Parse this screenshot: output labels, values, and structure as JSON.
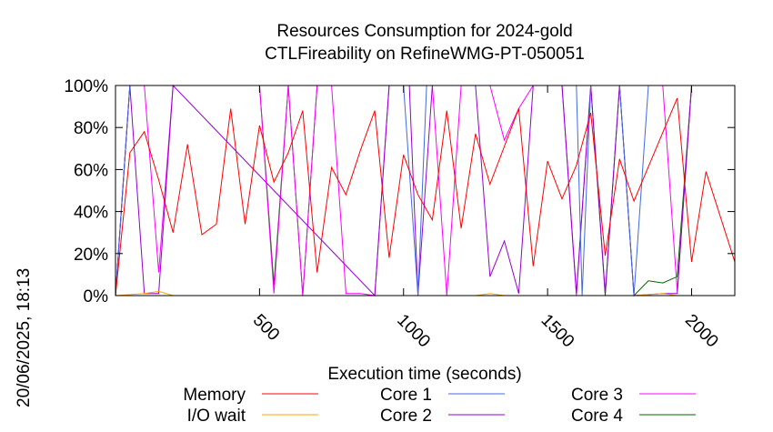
{
  "side_text": "20/06/2025, 18:13",
  "chart_data": {
    "type": "line",
    "title": "Resources Consumption for 2024-gold",
    "subtitle": "CTLFireability on RefineWMG-PT-050051",
    "xlabel": "Execution time (seconds)",
    "ylabel": "",
    "xlim": [
      0,
      2150
    ],
    "ylim": [
      0,
      100
    ],
    "x_ticks": [
      500,
      1000,
      1500,
      2000
    ],
    "y_ticks": [
      "0%",
      "20%",
      "40%",
      "60%",
      "80%",
      "100%"
    ],
    "y_tick_values": [
      0,
      20,
      40,
      60,
      80,
      100
    ],
    "legend": [
      "Memory",
      "I/O wait",
      "Core 1",
      "Core 2",
      "Core 3",
      "Core 4"
    ],
    "series": [
      {
        "name": "Memory",
        "color": "#ff0000",
        "x": [
          0,
          50,
          100,
          150,
          200,
          250,
          300,
          350,
          400,
          450,
          500,
          550,
          600,
          650,
          700,
          750,
          800,
          850,
          900,
          950,
          1000,
          1050,
          1100,
          1150,
          1200,
          1250,
          1300,
          1350,
          1400,
          1450,
          1500,
          1550,
          1600,
          1650,
          1700,
          1750,
          1800,
          1950,
          2000,
          2050,
          2150
        ],
        "values": [
          0,
          68,
          78,
          55,
          30,
          72,
          29,
          34,
          89,
          34,
          81,
          54,
          68,
          88,
          11,
          61,
          48,
          69,
          88,
          18,
          67,
          48,
          36,
          88,
          32,
          77,
          53,
          71,
          89,
          14,
          64,
          46,
          62,
          87,
          19,
          65,
          45,
          94,
          16,
          59,
          16
        ]
      },
      {
        "name": "I/O wait",
        "color": "#ffa500",
        "x": [
          0,
          100,
          150,
          200,
          250,
          500,
          600,
          1250,
          1300,
          1350,
          1800,
          1900,
          1950
        ],
        "values": [
          0,
          1,
          2,
          0,
          0,
          0,
          0,
          0,
          1,
          0,
          0,
          1,
          0
        ]
      },
      {
        "name": "Core 1",
        "color": "#4169e1",
        "x": [
          0,
          50,
          110,
          140,
          150,
          170,
          200,
          1000,
          1050,
          1080,
          1100,
          1300,
          1450,
          1460,
          1500,
          1550,
          1600,
          1620,
          1650,
          1680,
          1700,
          1750,
          1800,
          1850,
          1900,
          1950,
          2000,
          2150
        ],
        "values": [
          0,
          100,
          100,
          100,
          100,
          100,
          100,
          100,
          0,
          100,
          100,
          100,
          100,
          100,
          100,
          100,
          100,
          0,
          100,
          100,
          100,
          100,
          0,
          100,
          100,
          100,
          100,
          100
        ]
      },
      {
        "name": "Core 2",
        "color": "#9400d3",
        "x": [
          0,
          50,
          100,
          150,
          200,
          900,
          950,
          1000,
          1020,
          1050,
          1100,
          1250,
          1300,
          1350,
          1400,
          1450,
          1500,
          1550,
          1600,
          1650,
          1700,
          1750,
          1800,
          1900,
          1950,
          2000,
          2150
        ],
        "values": [
          0,
          100,
          1,
          1,
          100,
          0,
          100,
          100,
          100,
          0,
          100,
          100,
          9,
          26,
          1,
          100,
          100,
          100,
          1,
          100,
          1,
          100,
          0,
          1,
          1,
          100,
          100
        ]
      },
      {
        "name": "Core 3",
        "color": "#ff00ff",
        "x": [
          0,
          50,
          100,
          150,
          200,
          450,
          500,
          550,
          600,
          650,
          700,
          750,
          800,
          850,
          900,
          950,
          1100,
          1150,
          1200,
          1250,
          1300,
          1350,
          1400,
          1450,
          1500,
          1550,
          1600,
          1650,
          1700,
          1750,
          1800,
          1850,
          1900,
          1950,
          2000,
          2150
        ],
        "values": [
          0,
          100,
          100,
          11,
          100,
          100,
          100,
          1,
          100,
          0,
          100,
          100,
          1,
          1,
          0,
          100,
          100,
          0,
          100,
          100,
          100,
          74,
          89,
          100,
          100,
          100,
          0,
          100,
          100,
          100,
          100,
          100,
          100,
          2,
          100,
          100
        ]
      },
      {
        "name": "Core 4",
        "color": "#006400",
        "x": [
          0,
          50,
          100,
          450,
          500,
          550,
          600,
          650,
          700,
          1650,
          1700,
          1750,
          1800,
          1850,
          1900,
          1950,
          2000,
          2150
        ],
        "values": [
          0,
          100,
          100,
          100,
          100,
          5,
          100,
          0,
          100,
          100,
          0,
          100,
          0,
          7,
          6,
          9,
          100,
          100
        ]
      }
    ]
  }
}
